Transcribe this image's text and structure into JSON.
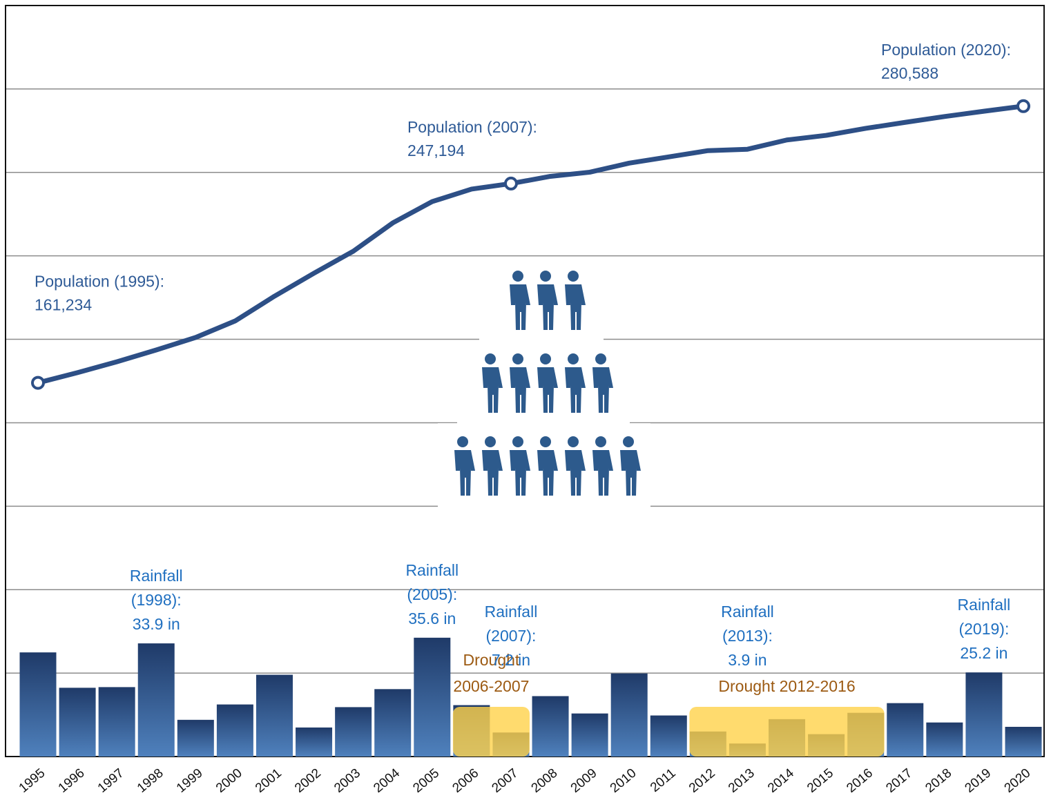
{
  "chart_data": {
    "type": "bar-line",
    "categories": [
      "1995",
      "1996",
      "1997",
      "1998",
      "1999",
      "2000",
      "2001",
      "2002",
      "2003",
      "2004",
      "2005",
      "2006",
      "2007",
      "2008",
      "2009",
      "2010",
      "2011",
      "2012",
      "2013",
      "2014",
      "2015",
      "2016",
      "2017",
      "2018",
      "2019",
      "2020"
    ],
    "series": [
      {
        "name": "Population",
        "type": "line",
        "axis": "y",
        "color": "#2d4f86",
        "values": [
          161234,
          165600,
          170300,
          175400,
          180800,
          187900,
          198600,
          208500,
          218000,
          230200,
          239400,
          244800,
          247194,
          250300,
          252100,
          256000,
          258700,
          261400,
          262000,
          266000,
          268000,
          271000,
          273600,
          276100,
          278400,
          280588
        ],
        "value_labels": [
          "161,234",
          null,
          null,
          null,
          null,
          null,
          null,
          null,
          null,
          null,
          null,
          null,
          "247,194",
          null,
          null,
          null,
          null,
          null,
          null,
          null,
          null,
          null,
          null,
          null,
          null,
          "280,588"
        ],
        "annotations": [
          "Population (1995):",
          null,
          null,
          null,
          null,
          null,
          null,
          null,
          null,
          null,
          null,
          null,
          "Population (2007):",
          null,
          null,
          null,
          null,
          null,
          null,
          null,
          null,
          null,
          null,
          null,
          null,
          "Population (2020):"
        ]
      },
      {
        "name": "Rainfall",
        "type": "bar",
        "axis": "y2",
        "color": "#4f81bd",
        "values": [
          31.2,
          20.6,
          20.8,
          33.9,
          11.0,
          15.6,
          24.5,
          8.7,
          14.8,
          20.2,
          35.6,
          15.4,
          7.2,
          18.1,
          12.9,
          24.9,
          12.3,
          7.5,
          3.9,
          11.2,
          6.7,
          13.1,
          16.0,
          10.2,
          25.2,
          8.9
        ],
        "value_labels": [
          null,
          null,
          null,
          "33.9 in",
          null,
          null,
          null,
          null,
          null,
          null,
          "35.6 in",
          null,
          "7.2 in",
          null,
          null,
          null,
          null,
          null,
          "3.9 in",
          null,
          null,
          null,
          null,
          null,
          "25.2 in",
          null
        ],
        "annotations": [
          null,
          null,
          null,
          [
            "Rainfall",
            "(1998):"
          ],
          null,
          null,
          null,
          null,
          null,
          null,
          [
            "Rainfall",
            "(2005):"
          ],
          null,
          [
            "Rainfall",
            "(2007):"
          ],
          null,
          null,
          null,
          null,
          null,
          [
            "Rainfall",
            "(2013):"
          ],
          null,
          null,
          null,
          null,
          null,
          [
            "Rainfall",
            "(2019):"
          ],
          null
        ]
      }
    ],
    "drought_periods": [
      {
        "label": [
          "Drought",
          "2006-2007"
        ],
        "start": "2006",
        "end": "2007"
      },
      {
        "label": [
          "Drought 2012-2016"
        ],
        "start": "2012",
        "end": "2016"
      }
    ],
    "ylim": [
      0,
      324000
    ],
    "yticks": [
      0,
      36000,
      72000,
      108000,
      144000,
      180000,
      216000,
      252000,
      288000,
      324000
    ],
    "y2lim": [
      0,
      225
    ],
    "grid": true
  }
}
